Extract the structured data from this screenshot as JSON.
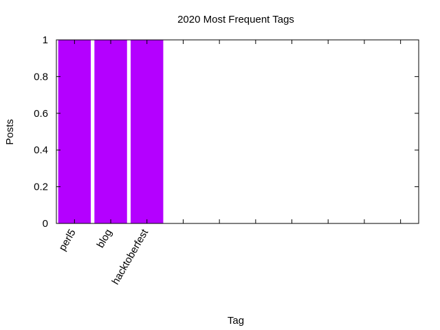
{
  "chart_data": {
    "type": "bar",
    "title": "2020 Most Frequent Tags",
    "xlabel": "Tag",
    "ylabel": "Posts",
    "categories": [
      "perl5",
      "blog",
      "hacktoberfest",
      "",
      "",
      "",
      "",
      "",
      "",
      ""
    ],
    "values": [
      1,
      1,
      1,
      0,
      0,
      0,
      0,
      0,
      0,
      0
    ],
    "yticks": [
      0,
      0.2,
      0.4,
      0.6,
      0.8,
      1
    ],
    "ytick_labels": [
      "0",
      "0.2",
      "0.4",
      "0.6",
      "0.8",
      "1"
    ],
    "ylim": [
      0,
      1
    ],
    "bar_color": "#b400ff",
    "grid": false,
    "legend": "none"
  }
}
